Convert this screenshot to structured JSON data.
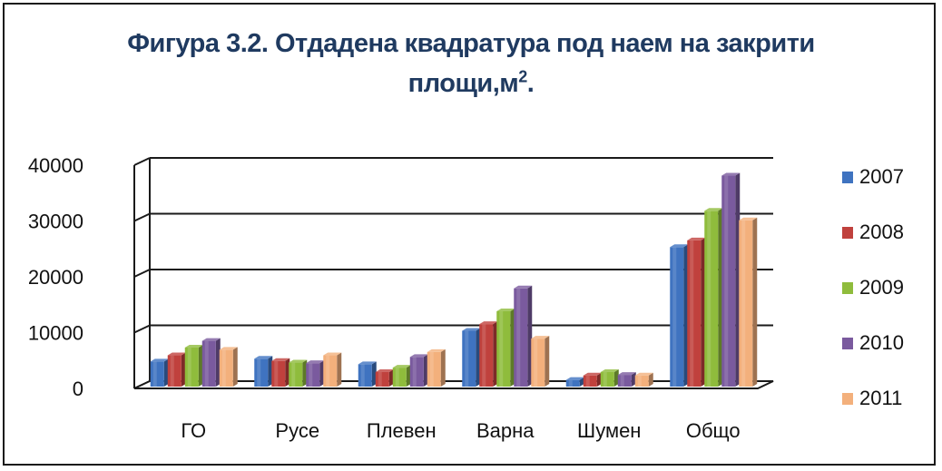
{
  "chart_data": {
    "type": "bar",
    "title_line1": "Фигура 3.2. Отдадена квадратура  под наем на закрити",
    "title_line2": "площи,м",
    "title_sup": "2",
    "title_end": ".",
    "categories": [
      "ГО",
      "Русе",
      "Плевен",
      "Варна",
      "Шумен",
      "Общо"
    ],
    "y_ticks": [
      "0",
      "10000",
      "20000",
      "30000",
      "40000"
    ],
    "ylim": [
      0,
      40000
    ],
    "grid": true,
    "legend_position": "right",
    "series": [
      {
        "name": "2007",
        "color": "#3f73c0",
        "values": [
          4500,
          5000,
          4000,
          10000,
          1200,
          25000
        ]
      },
      {
        "name": "2008",
        "color": "#c0413d",
        "values": [
          5600,
          4600,
          2600,
          11200,
          2000,
          26200
        ]
      },
      {
        "name": "2009",
        "color": "#8fbc3c",
        "values": [
          7000,
          4300,
          3400,
          13500,
          2600,
          31500
        ]
      },
      {
        "name": "2010",
        "color": "#7a5a9e",
        "values": [
          8200,
          4200,
          5300,
          17600,
          2100,
          37800
        ]
      },
      {
        "name": "2011",
        "color": "#f3b07c",
        "values": [
          6600,
          5600,
          6200,
          8600,
          2000,
          29800
        ]
      }
    ]
  }
}
